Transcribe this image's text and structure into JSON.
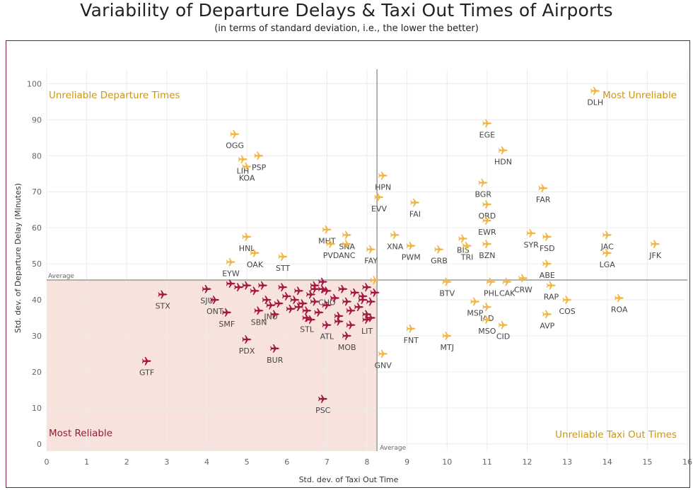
{
  "title": "Variability of Departure Delays & Taxi Out Times of Airports",
  "subtitle": "(in terms of standard deviation, i.e., the lower the better)",
  "colors": {
    "reliable": "#a3163f",
    "unreliable": "#f1b641",
    "quadrant_fill": "#f8e3dc",
    "frame": "#7a2035",
    "quadrant_text_gold": "#c9951c",
    "quadrant_text_red": "#8a1f35"
  },
  "chart_data": {
    "type": "scatter",
    "title": "Variability of Departure Delays & Taxi Out Times of Airports",
    "subtitle": "(in terms of standard deviation, i.e., the lower the better)",
    "xlabel": "Std. dev. of Taxi Out Time",
    "ylabel": "Std. dev. of Departure Delay (Minutes)",
    "xlim": [
      0,
      16
    ],
    "ylim": [
      -2,
      104
    ],
    "xticks": [
      0,
      1,
      2,
      3,
      4,
      5,
      6,
      7,
      8,
      9,
      10,
      11,
      12,
      13,
      14,
      15,
      16
    ],
    "yticks": [
      0,
      10,
      20,
      30,
      40,
      50,
      60,
      70,
      80,
      90,
      100
    ],
    "grid": true,
    "marker": "airplane-icon",
    "reference_lines": {
      "x_average": 8.25,
      "y_average": 45.5,
      "label": "Average"
    },
    "quadrant_labels": {
      "top_left": "Unreliable Departure Times",
      "top_right": "Most Unreliable",
      "bottom_left": "Most Reliable",
      "bottom_right": "Unreliable Taxi Out Times"
    },
    "points": [
      {
        "x": 13.7,
        "y": 98,
        "label": "DLH"
      },
      {
        "x": 11.0,
        "y": 89,
        "label": "EGE"
      },
      {
        "x": 11.4,
        "y": 81.5,
        "label": "HDN"
      },
      {
        "x": 10.9,
        "y": 72.5,
        "label": "BGR"
      },
      {
        "x": 12.4,
        "y": 71,
        "label": "FAR"
      },
      {
        "x": 11.0,
        "y": 66.5,
        "label": "ORD"
      },
      {
        "x": 11.0,
        "y": 62,
        "label": "EWR"
      },
      {
        "x": 12.1,
        "y": 58.5,
        "label": "SYR"
      },
      {
        "x": 12.5,
        "y": 57.5,
        "label": "FSD"
      },
      {
        "x": 14.0,
        "y": 58,
        "label": "JAC"
      },
      {
        "x": 15.2,
        "y": 55.5,
        "label": "JFK"
      },
      {
        "x": 14.0,
        "y": 53,
        "label": "LGA"
      },
      {
        "x": 12.5,
        "y": 50,
        "label": "ABE"
      },
      {
        "x": 10.4,
        "y": 57,
        "label": "BIS"
      },
      {
        "x": 10.5,
        "y": 55,
        "label": "TRI"
      },
      {
        "x": 11.0,
        "y": 55.5,
        "label": "BZN"
      },
      {
        "x": 12.6,
        "y": 44,
        "label": "RAP"
      },
      {
        "x": 13.0,
        "y": 40,
        "label": "COS"
      },
      {
        "x": 14.3,
        "y": 40.5,
        "label": "ROA"
      },
      {
        "x": 12.5,
        "y": 36,
        "label": "AVP"
      },
      {
        "x": 11.1,
        "y": 45,
        "label": "PHL"
      },
      {
        "x": 11.5,
        "y": 45,
        "label": "CAK"
      },
      {
        "x": 11.9,
        "y": 46,
        "label": "CRW"
      },
      {
        "x": 10.0,
        "y": 45,
        "label": "BTV"
      },
      {
        "x": 11.0,
        "y": 38,
        "label": "IAD"
      },
      {
        "x": 10.7,
        "y": 39.5,
        "label": "MSP"
      },
      {
        "x": 11.0,
        "y": 34.5,
        "label": "MSO"
      },
      {
        "x": 11.4,
        "y": 33,
        "label": "CID"
      },
      {
        "x": 10.0,
        "y": 30,
        "label": "MTJ"
      },
      {
        "x": 9.1,
        "y": 32,
        "label": "FNT"
      },
      {
        "x": 8.4,
        "y": 25,
        "label": "GNV"
      },
      {
        "x": 8.4,
        "y": 74.5,
        "label": "HPN"
      },
      {
        "x": 8.3,
        "y": 68.5,
        "label": "EVV"
      },
      {
        "x": 9.2,
        "y": 67,
        "label": "FAI"
      },
      {
        "x": 8.7,
        "y": 58,
        "label": "XNA"
      },
      {
        "x": 8.1,
        "y": 54,
        "label": "FAY"
      },
      {
        "x": 9.1,
        "y": 55,
        "label": "PWM"
      },
      {
        "x": 9.8,
        "y": 54,
        "label": "GRB"
      },
      {
        "x": 7.0,
        "y": 59.5,
        "label": "MHT"
      },
      {
        "x": 7.5,
        "y": 58,
        "label": "SNA"
      },
      {
        "x": 7.5,
        "y": 55.5,
        "label": "ANC"
      },
      {
        "x": 7.1,
        "y": 55.5,
        "label": "PVD"
      },
      {
        "x": 4.7,
        "y": 86,
        "label": "OGG"
      },
      {
        "x": 4.9,
        "y": 79,
        "label": "LIH"
      },
      {
        "x": 5.3,
        "y": 80,
        "label": "PSP"
      },
      {
        "x": 5.0,
        "y": 77,
        "label": "KOA"
      },
      {
        "x": 5.0,
        "y": 57.5,
        "label": "HNL"
      },
      {
        "x": 5.2,
        "y": 53,
        "label": "OAK"
      },
      {
        "x": 5.9,
        "y": 52,
        "label": "STT"
      },
      {
        "x": 4.6,
        "y": 50.5,
        "label": "EYW"
      },
      {
        "x": 2.9,
        "y": 41.5,
        "label": "STX"
      },
      {
        "x": 2.5,
        "y": 23,
        "label": "GTF"
      },
      {
        "x": 4.0,
        "y": 43,
        "label": "SJU"
      },
      {
        "x": 4.2,
        "y": 40,
        "label": "ONT"
      },
      {
        "x": 4.5,
        "y": 36.5,
        "label": "SMF"
      },
      {
        "x": 5.3,
        "y": 37,
        "label": "SBN"
      },
      {
        "x": 5.6,
        "y": 38.5,
        "label": "JNU"
      },
      {
        "x": 5.0,
        "y": 29,
        "label": "PDX"
      },
      {
        "x": 5.7,
        "y": 26.5,
        "label": "BUR"
      },
      {
        "x": 6.5,
        "y": 35,
        "label": "STL"
      },
      {
        "x": 7.0,
        "y": 33,
        "label": "ATL"
      },
      {
        "x": 7.5,
        "y": 30,
        "label": "MOB"
      },
      {
        "x": 8.0,
        "y": 34.5,
        "label": "LIT"
      },
      {
        "x": 7.0,
        "y": 42.5,
        "label": "CHO"
      },
      {
        "x": 6.9,
        "y": 12.5,
        "label": "PSC"
      },
      {
        "x": 4.6,
        "y": 44.5
      },
      {
        "x": 4.8,
        "y": 43.5
      },
      {
        "x": 5.0,
        "y": 44
      },
      {
        "x": 5.2,
        "y": 42.5
      },
      {
        "x": 5.4,
        "y": 44
      },
      {
        "x": 5.5,
        "y": 40
      },
      {
        "x": 5.8,
        "y": 39
      },
      {
        "x": 5.9,
        "y": 43.5
      },
      {
        "x": 6.0,
        "y": 41
      },
      {
        "x": 6.1,
        "y": 37.5
      },
      {
        "x": 6.2,
        "y": 40
      },
      {
        "x": 6.3,
        "y": 42.5
      },
      {
        "x": 6.4,
        "y": 39
      },
      {
        "x": 6.5,
        "y": 37
      },
      {
        "x": 6.6,
        "y": 41.5
      },
      {
        "x": 6.7,
        "y": 44
      },
      {
        "x": 6.7,
        "y": 39.5
      },
      {
        "x": 6.8,
        "y": 36.5
      },
      {
        "x": 6.9,
        "y": 43
      },
      {
        "x": 6.9,
        "y": 45
      },
      {
        "x": 7.0,
        "y": 38.5
      },
      {
        "x": 7.2,
        "y": 40.5
      },
      {
        "x": 7.3,
        "y": 35.5
      },
      {
        "x": 7.4,
        "y": 43
      },
      {
        "x": 7.5,
        "y": 39.5
      },
      {
        "x": 7.6,
        "y": 37
      },
      {
        "x": 7.7,
        "y": 42
      },
      {
        "x": 7.8,
        "y": 38
      },
      {
        "x": 7.9,
        "y": 41
      },
      {
        "x": 8.0,
        "y": 43.5
      },
      {
        "x": 8.1,
        "y": 39.5
      },
      {
        "x": 8.0,
        "y": 36
      },
      {
        "x": 8.2,
        "y": 45.5
      },
      {
        "x": 8.2,
        "y": 42
      },
      {
        "x": 8.1,
        "y": 35
      },
      {
        "x": 7.3,
        "y": 34
      },
      {
        "x": 6.6,
        "y": 34.5
      },
      {
        "x": 6.3,
        "y": 38
      },
      {
        "x": 7.6,
        "y": 33
      },
      {
        "x": 5.7,
        "y": 36
      },
      {
        "x": 6.7,
        "y": 43
      },
      {
        "x": 7.9,
        "y": 40
      }
    ]
  }
}
